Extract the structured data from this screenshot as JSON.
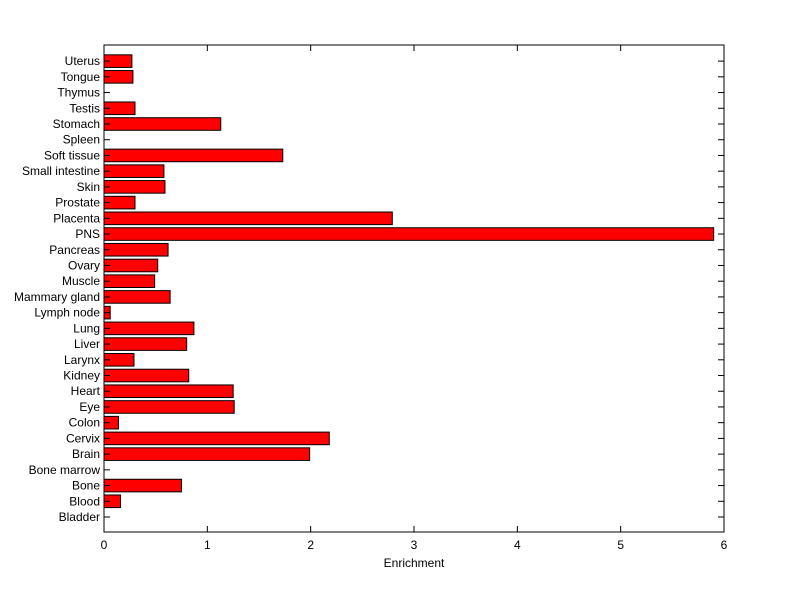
{
  "chart_data": {
    "type": "bar",
    "orientation": "horizontal",
    "title": "",
    "xlabel": "Enrichment",
    "ylabel": "",
    "xlim": [
      0,
      6
    ],
    "xticks": [
      0,
      1,
      2,
      3,
      4,
      5,
      6
    ],
    "grid": false,
    "legend": "none",
    "bar_color": "#ff0000",
    "bar_edge_color": "#000000",
    "categories": [
      "Bladder",
      "Blood",
      "Bone",
      "Bone marrow",
      "Brain",
      "Cervix",
      "Colon",
      "Eye",
      "Heart",
      "Kidney",
      "Larynx",
      "Liver",
      "Lung",
      "Lymph node",
      "Mammary gland",
      "Muscle",
      "Ovary",
      "Pancreas",
      "PNS",
      "Placenta",
      "Prostate",
      "Skin",
      "Small intestine",
      "Soft tissue",
      "Spleen",
      "Stomach",
      "Testis",
      "Thymus",
      "Tongue",
      "Uterus"
    ],
    "values": [
      0,
      0.16,
      0.75,
      0,
      1.99,
      2.18,
      0.14,
      1.26,
      1.25,
      0.82,
      0.29,
      0.8,
      0.87,
      0.06,
      0.64,
      0.49,
      0.52,
      0.62,
      5.9,
      2.79,
      0.3,
      0.59,
      0.58,
      1.73,
      0,
      1.13,
      0.3,
      0,
      0.28,
      0.27
    ]
  }
}
